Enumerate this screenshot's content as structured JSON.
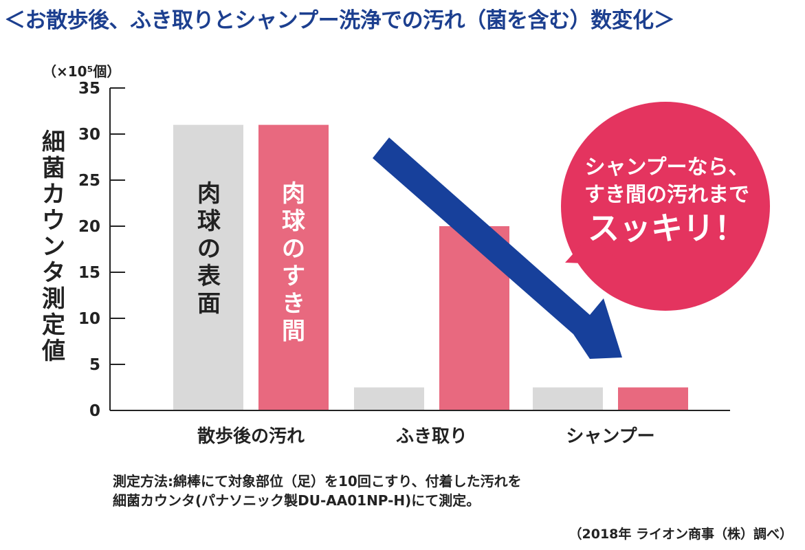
{
  "title": "＜お散歩後、ふき取りとシャンプー洗浄での汚れ（菌を含む）数変化＞",
  "unit_label": "（×10⁵個）",
  "ylabel_chars": [
    "細",
    "菌",
    "カ",
    "ウ",
    "ン",
    "タ",
    "測",
    "定",
    "値"
  ],
  "bubble": {
    "line1": "シャンプーなら、",
    "line2": "すき間の汚れまで",
    "line3": "スッキリ！"
  },
  "bar_labels": {
    "surface": [
      "肉",
      "球",
      "の",
      "表",
      "面"
    ],
    "gap": [
      "肉",
      "球",
      "の",
      "す",
      "き",
      "間"
    ]
  },
  "note": {
    "line1": "測定方法:綿棒にて対象部位（足）を10回こすり、付着した汚れを",
    "line2": "細菌カウンタ(パナソニック製DU-AA01NP-H)にて測定。"
  },
  "source": "（2018年 ライオン商事（株）調べ）",
  "colors": {
    "surface": "#d9d9d9",
    "gap": "#e8697f",
    "arrow": "#17409b",
    "bubble": "#e4345f",
    "title": "#1c3f8f"
  },
  "chart_data": {
    "type": "bar",
    "categories": [
      "散歩後の汚れ",
      "ふき取り",
      "シャンプー"
    ],
    "series": [
      {
        "name": "肉球の表面",
        "values": [
          31,
          2.5,
          2.5
        ]
      },
      {
        "name": "肉球のすき間",
        "values": [
          31,
          20,
          2.5
        ]
      }
    ],
    "ylabel": "細菌カウンタ測定値",
    "yunit": "×10⁵個",
    "ylim": [
      0,
      35
    ],
    "yticks": [
      0,
      5,
      10,
      15,
      20,
      25,
      30,
      35
    ],
    "grid": false
  }
}
